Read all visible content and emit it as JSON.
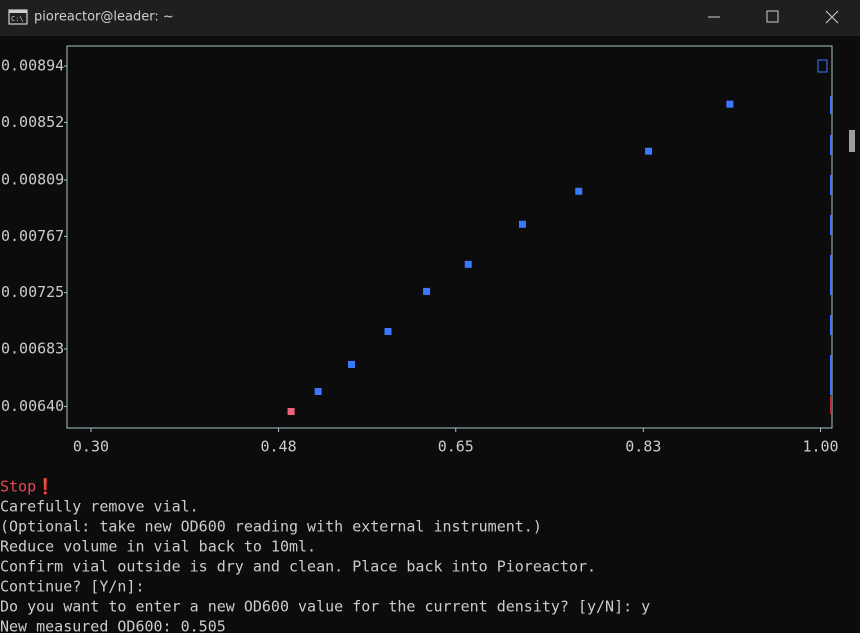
{
  "window": {
    "title": "pioreactor@leader: ~"
  },
  "chart_data": {
    "type": "scatter",
    "xlim": [
      0.277,
      1.011
    ],
    "ylim": [
      0.00624,
      0.00909
    ],
    "xticks": [
      {
        "value": 0.3,
        "label": "0.30"
      },
      0.48,
      0.65,
      0.83,
      {
        "value": 1.0,
        "label": "1.00"
      }
    ],
    "yticks": [
      0.00894,
      0.00852,
      0.00809,
      0.00767,
      0.00725,
      0.00683,
      {
        "value": 0.0064,
        "label": "0.00640"
      }
    ],
    "series": [
      {
        "color": "#f2637a",
        "x": [
          0.492
        ],
        "values": [
          0.006363
        ]
      },
      {
        "color": "#3b78ff",
        "x": [
          0.518,
          0.55,
          0.585,
          0.622,
          0.662,
          0.714,
          0.768,
          0.835,
          0.913
        ],
        "values": [
          0.006512,
          0.006714,
          0.00696,
          0.007259,
          0.007461,
          0.00776,
          0.008006,
          0.008305,
          0.008656
        ]
      }
    ]
  },
  "terminal_lines": [
    "Stop❗",
    "Carefully remove vial.",
    "(Optional: take new OD600 reading with external instrument.)",
    "Reduce volume in vial back to 10ml.",
    "Confirm vial outside is dry and clean. Place back into Pioreactor.",
    "Continue? [Y/n]:",
    "Do you want to enter a new OD600 value for the current density? [y/N]: y",
    "New measured OD600: 0.505"
  ]
}
